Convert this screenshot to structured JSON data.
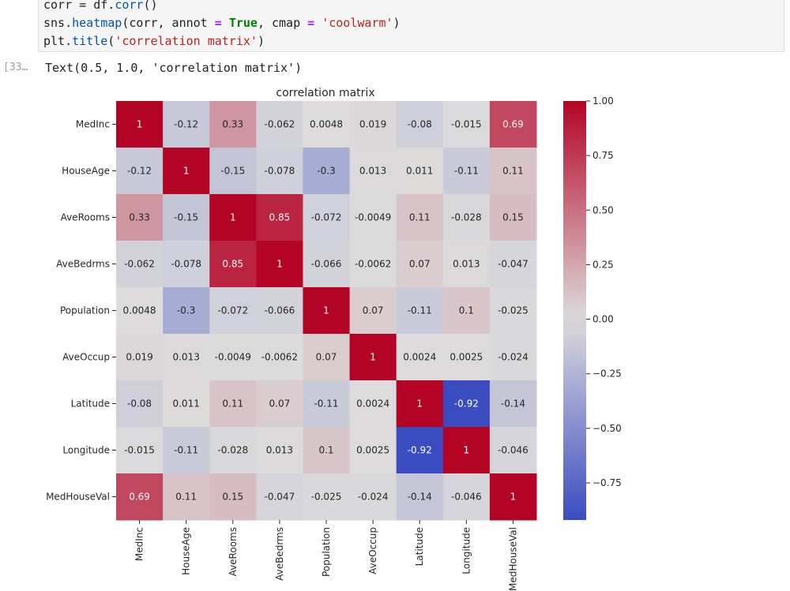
{
  "cell": {
    "code": {
      "line1": {
        "a": "corr = ",
        "b": "df",
        "c": ".",
        "d": "corr",
        "e": "()"
      },
      "line2": {
        "a": "sns.",
        "b": "heatmap",
        "c": "(corr, annot ",
        "d": "=",
        "e": " ",
        "f": "True",
        "g": ", cmap ",
        "h": "=",
        "i": " ",
        "j": "'coolwarm'",
        "k": ")"
      },
      "line3": {
        "a": "plt.",
        "b": "title",
        "c": "(",
        "d": "'correlation matrix'",
        "e": ")"
      }
    },
    "prompt": "[33…",
    "output_text": "Text(0.5, 1.0, 'correlation matrix')"
  },
  "colors": {
    "low": "#3b4cc0",
    "mid": "#dddcdc",
    "high": "#b40426"
  },
  "chart_data": {
    "type": "heatmap",
    "title": "correlation matrix",
    "labels": [
      "MedInc",
      "HouseAge",
      "AveRooms",
      "AveBedrms",
      "Population",
      "AveOccup",
      "Latitude",
      "Longitude",
      "MedHouseVal"
    ],
    "values": [
      [
        1,
        -0.12,
        0.33,
        -0.062,
        0.0048,
        0.019,
        -0.08,
        -0.015,
        0.69
      ],
      [
        -0.12,
        1,
        -0.15,
        -0.078,
        -0.3,
        0.013,
        0.011,
        -0.11,
        0.11
      ],
      [
        0.33,
        -0.15,
        1,
        0.85,
        -0.072,
        -0.0049,
        0.11,
        -0.028,
        0.15
      ],
      [
        -0.062,
        -0.078,
        0.85,
        1,
        -0.066,
        -0.0062,
        0.07,
        0.013,
        -0.047
      ],
      [
        0.0048,
        -0.3,
        -0.072,
        -0.066,
        1,
        0.07,
        -0.11,
        0.1,
        -0.025
      ],
      [
        0.019,
        0.013,
        -0.0049,
        -0.0062,
        0.07,
        1,
        0.0024,
        0.0025,
        -0.024
      ],
      [
        -0.08,
        0.011,
        0.11,
        0.07,
        -0.11,
        0.0024,
        1,
        -0.92,
        -0.14
      ],
      [
        -0.015,
        -0.11,
        -0.028,
        0.013,
        0.1,
        0.0025,
        -0.92,
        1,
        -0.046
      ],
      [
        0.69,
        0.11,
        0.15,
        -0.047,
        -0.025,
        -0.024,
        -0.14,
        -0.046,
        1
      ]
    ],
    "annot": [
      "1",
      "-0.12",
      "0.33",
      "-0.062",
      "0.0048",
      "0.019",
      "-0.08",
      "-0.015",
      "0.69",
      "-0.12",
      "1",
      "-0.15",
      "-0.078",
      "-0.3",
      "0.013",
      "0.011",
      "-0.11",
      "0.11",
      "0.33",
      "-0.15",
      "1",
      "0.85",
      "-0.072",
      "-0.0049",
      "0.11",
      "-0.028",
      "0.15",
      "-0.062",
      "-0.078",
      "0.85",
      "1",
      "-0.066",
      "-0.0062",
      "0.07",
      "0.013",
      "-0.047",
      "0.0048",
      "-0.3",
      "-0.072",
      "-0.066",
      "1",
      "0.07",
      "-0.11",
      "0.1",
      "-0.025",
      "0.019",
      "0.013",
      "-0.0049",
      "-0.0062",
      "0.07",
      "1",
      "0.0024",
      "0.0025",
      "-0.024",
      "-0.08",
      "0.011",
      "0.11",
      "0.07",
      "-0.11",
      "0.0024",
      "1",
      "-0.92",
      "-0.14",
      "-0.015",
      "-0.11",
      "-0.028",
      "0.013",
      "0.1",
      "0.0025",
      "-0.92",
      "1",
      "-0.046",
      "0.69",
      "0.11",
      "0.15",
      "-0.047",
      "-0.025",
      "-0.024",
      "-0.14",
      "-0.046",
      "1"
    ],
    "colorbar": {
      "range": [
        -0.92,
        1
      ],
      "ticks": [
        1.0,
        0.75,
        0.5,
        0.25,
        0.0,
        -0.25,
        -0.5,
        -0.75
      ],
      "tick_labels": [
        "1.00",
        "0.75",
        "0.50",
        "0.25",
        "0.00",
        "−0.25",
        "−0.50",
        "−0.75"
      ]
    },
    "cmap": "coolwarm"
  }
}
